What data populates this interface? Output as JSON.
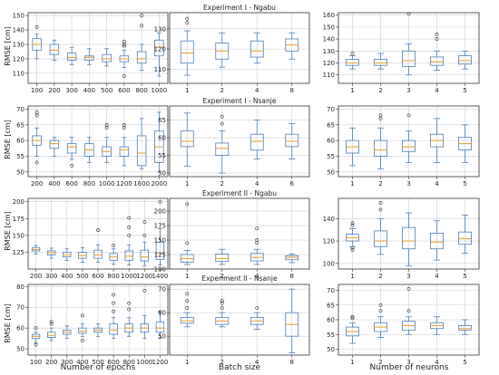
{
  "figure": {
    "row_titles": [
      "Experiment I - Ngabu",
      "Experiment I - Nsanje",
      "Experiment II - Ngabu",
      "Experiment II - Nsanje"
    ],
    "ylabel": "RMSE [cm]",
    "col_xlabels": [
      "Number of epochs",
      "Batch size",
      "Number of neurons"
    ]
  },
  "style": {
    "box_color": "#4a7fb5",
    "median_color": "#e8a33c",
    "grid_color": "#d0d0d0",
    "flier_color": "#333333"
  },
  "chart_data": [
    {
      "type": "box",
      "row": 0,
      "col": 0,
      "ylabel": "RMSE [cm]",
      "xlabel": "",
      "ylim": [
        103,
        152
      ],
      "yticks": [
        110,
        120,
        130,
        140,
        150
      ],
      "categories": [
        "100",
        "200",
        "300",
        "400",
        "500",
        "600",
        "800",
        "1000"
      ],
      "boxes": [
        {
          "lo": 120,
          "q1": 126,
          "med": 130,
          "q3": 134,
          "hi": 137,
          "fliers": [
            142
          ]
        },
        {
          "lo": 119,
          "q1": 123,
          "med": 126,
          "q3": 130,
          "hi": 133,
          "fliers": []
        },
        {
          "lo": 116,
          "q1": 119,
          "med": 121,
          "q3": 124,
          "hi": 128,
          "fliers": []
        },
        {
          "lo": 116,
          "q1": 119,
          "med": 121,
          "q3": 122,
          "hi": 127,
          "fliers": []
        },
        {
          "lo": 115,
          "q1": 118,
          "med": 120,
          "q3": 123,
          "hi": 127,
          "fliers": []
        },
        {
          "lo": 114,
          "q1": 118,
          "med": 120,
          "q3": 122,
          "hi": 126,
          "fliers": [
            108,
            129,
            130,
            132
          ]
        },
        {
          "lo": 112,
          "q1": 117,
          "med": 120,
          "q3": 125,
          "hi": 130,
          "fliers": [
            143,
            150
          ]
        },
        {
          "lo": 108,
          "q1": 122,
          "med": 128,
          "q3": 133,
          "hi": 138,
          "fliers": []
        }
      ]
    },
    {
      "type": "box",
      "row": 0,
      "col": 1,
      "title": "Experiment I - Ngabu",
      "ylim": [
        103,
        138
      ],
      "yticks": [
        110,
        120,
        130
      ],
      "categories": [
        "1",
        "2",
        "4",
        "8"
      ],
      "boxes": [
        {
          "lo": 107,
          "q1": 113,
          "med": 118,
          "q3": 124,
          "hi": 129,
          "fliers": [
            133,
            135
          ]
        },
        {
          "lo": 111,
          "q1": 115,
          "med": 119,
          "q3": 123,
          "hi": 128,
          "fliers": []
        },
        {
          "lo": 113,
          "q1": 116,
          "med": 119,
          "q3": 124,
          "hi": 128,
          "fliers": []
        },
        {
          "lo": 115,
          "q1": 119,
          "med": 122,
          "q3": 125,
          "hi": 128,
          "fliers": []
        }
      ]
    },
    {
      "type": "box",
      "row": 0,
      "col": 2,
      "ylim": [
        103,
        162
      ],
      "yticks": [
        110,
        120,
        130,
        140,
        150,
        160
      ],
      "categories": [
        "1",
        "2",
        "3",
        "4",
        "5"
      ],
      "boxes": [
        {
          "lo": 115,
          "q1": 118,
          "med": 120,
          "q3": 123,
          "hi": 126,
          "fliers": [
            128
          ]
        },
        {
          "lo": 115,
          "q1": 118,
          "med": 120,
          "q3": 123,
          "hi": 128,
          "fliers": []
        },
        {
          "lo": 110,
          "q1": 117,
          "med": 122,
          "q3": 130,
          "hi": 136,
          "fliers": [
            161
          ]
        },
        {
          "lo": 114,
          "q1": 118,
          "med": 121,
          "q3": 125,
          "hi": 130,
          "fliers": [
            140,
            144
          ]
        },
        {
          "lo": 115,
          "q1": 119,
          "med": 122,
          "q3": 126,
          "hi": 130,
          "fliers": []
        }
      ]
    },
    {
      "type": "box",
      "row": 1,
      "col": 0,
      "ylabel": "RMSE [cm]",
      "ylim": [
        48.5,
        71
      ],
      "yticks": [
        50,
        55,
        60,
        65,
        70
      ],
      "categories": [
        "200",
        "400",
        "600",
        "800",
        "1000",
        "1200",
        "1600",
        "2000"
      ],
      "boxes": [
        {
          "lo": 55,
          "q1": 58.5,
          "med": 60,
          "q3": 61.5,
          "hi": 64,
          "fliers": [
            68,
            69,
            53
          ]
        },
        {
          "lo": 55,
          "q1": 57.5,
          "med": 59,
          "q3": 60,
          "hi": 61,
          "fliers": []
        },
        {
          "lo": 54,
          "q1": 56,
          "med": 58,
          "q3": 59,
          "hi": 61,
          "fliers": [
            52
          ]
        },
        {
          "lo": 53,
          "q1": 55,
          "med": 57,
          "q3": 59,
          "hi": 61,
          "fliers": []
        },
        {
          "lo": 53,
          "q1": 55,
          "med": 56.5,
          "q3": 58,
          "hi": 61,
          "fliers": [
            64,
            65
          ]
        },
        {
          "lo": 52,
          "q1": 55,
          "med": 57,
          "q3": 58,
          "hi": 61,
          "fliers": [
            64,
            65
          ]
        },
        {
          "lo": 51,
          "q1": 52,
          "med": 56,
          "q3": 61.5,
          "hi": 67,
          "fliers": []
        },
        {
          "lo": 50,
          "q1": 53,
          "med": 58,
          "q3": 63,
          "hi": 69,
          "fliers": []
        }
      ]
    },
    {
      "type": "box",
      "row": 1,
      "col": 1,
      "title": "Experiment I - Nsanje",
      "ylim": [
        49,
        69
      ],
      "yticks": [
        50,
        55,
        60,
        65
      ],
      "categories": [
        "1",
        "2",
        "4",
        "6"
      ],
      "boxes": [
        {
          "lo": 52,
          "q1": 57.5,
          "med": 59,
          "q3": 62,
          "hi": 67,
          "fliers": []
        },
        {
          "lo": 50,
          "q1": 55,
          "med": 57,
          "q3": 58.5,
          "hi": 62,
          "fliers": [
            64,
            66
          ]
        },
        {
          "lo": 54,
          "q1": 56.5,
          "med": 59,
          "q3": 61,
          "hi": 65,
          "fliers": []
        },
        {
          "lo": 54,
          "q1": 57.5,
          "med": 59,
          "q3": 61,
          "hi": 64,
          "fliers": []
        }
      ]
    },
    {
      "type": "box",
      "row": 1,
      "col": 2,
      "ylim": [
        48.5,
        71
      ],
      "yticks": [
        50,
        55,
        60,
        65,
        70
      ],
      "categories": [
        "1",
        "2",
        "3",
        "4",
        "5"
      ],
      "boxes": [
        {
          "lo": 52,
          "q1": 56,
          "med": 58,
          "q3": 60,
          "hi": 64,
          "fliers": []
        },
        {
          "lo": 51,
          "q1": 55,
          "med": 57,
          "q3": 60,
          "hi": 64,
          "fliers": [
            67,
            68
          ]
        },
        {
          "lo": 53,
          "q1": 56.5,
          "med": 58,
          "q3": 60,
          "hi": 63,
          "fliers": [
            68
          ]
        },
        {
          "lo": 53,
          "q1": 58,
          "med": 60,
          "q3": 62,
          "hi": 67,
          "fliers": []
        },
        {
          "lo": 53,
          "q1": 57,
          "med": 59,
          "q3": 61,
          "hi": 65,
          "fliers": []
        }
      ]
    },
    {
      "type": "box",
      "row": 2,
      "col": 0,
      "ylabel": "RMSE [cm]",
      "ylim": [
        100,
        205
      ],
      "yticks": [
        125,
        150,
        175,
        200
      ],
      "categories": [
        "200",
        "300",
        "400",
        "500",
        "600",
        "800",
        "1000",
        "1200",
        "1400"
      ],
      "boxes": [
        {
          "lo": 122,
          "q1": 127,
          "med": 129,
          "q3": 132,
          "hi": 135,
          "fliers": []
        },
        {
          "lo": 116,
          "q1": 121,
          "med": 124,
          "q3": 127,
          "hi": 131,
          "fliers": []
        },
        {
          "lo": 113,
          "q1": 118,
          "med": 121,
          "q3": 125,
          "hi": 130,
          "fliers": []
        },
        {
          "lo": 110,
          "q1": 116,
          "med": 120,
          "q3": 125,
          "hi": 132,
          "fliers": []
        },
        {
          "lo": 110,
          "q1": 116,
          "med": 121,
          "q3": 128,
          "hi": 136,
          "fliers": [
            158
          ]
        },
        {
          "lo": 107,
          "q1": 113,
          "med": 118,
          "q3": 123,
          "hi": 130,
          "fliers": [
            135
          ]
        },
        {
          "lo": 106,
          "q1": 113,
          "med": 119,
          "q3": 127,
          "hi": 136,
          "fliers": [
            150,
            162,
            176
          ]
        },
        {
          "lo": 105,
          "q1": 112,
          "med": 118,
          "q3": 128,
          "hi": 140,
          "fliers": [
            150,
            170
          ]
        },
        {
          "lo": 106,
          "q1": 114,
          "med": 123,
          "q3": 140,
          "hi": 160,
          "fliers": [
            200
          ]
        }
      ]
    },
    {
      "type": "box",
      "row": 2,
      "col": 1,
      "title": "Experiment II - Ngabu",
      "ylim": [
        100,
        222
      ],
      "yticks": [
        100,
        125,
        150,
        175,
        200
      ],
      "categories": [
        "1",
        "2",
        "4",
        "8"
      ],
      "boxes": [
        {
          "lo": 108,
          "q1": 112,
          "med": 118,
          "q3": 125,
          "hi": 132,
          "fliers": [
            145,
            212
          ]
        },
        {
          "lo": 108,
          "q1": 113,
          "med": 118,
          "q3": 126,
          "hi": 134,
          "fliers": []
        },
        {
          "lo": 108,
          "q1": 114,
          "med": 120,
          "q3": 127,
          "hi": 134,
          "fliers": [
            145,
            150,
            170
          ]
        },
        {
          "lo": 111,
          "q1": 116,
          "med": 120,
          "q3": 123,
          "hi": 126,
          "fliers": []
        }
      ]
    },
    {
      "type": "box",
      "row": 2,
      "col": 2,
      "ylim": [
        95,
        158
      ],
      "yticks": [
        100,
        120,
        140
      ],
      "categories": [
        "1",
        "2",
        "3",
        "4",
        "5"
      ],
      "boxes": [
        {
          "lo": 115,
          "q1": 120,
          "med": 123,
          "q3": 126,
          "hi": 131,
          "fliers": [
            112,
            114,
            134,
            136
          ]
        },
        {
          "lo": 108,
          "q1": 115,
          "med": 120,
          "q3": 129,
          "hi": 140,
          "fliers": [
            148,
            154
          ]
        },
        {
          "lo": 98,
          "q1": 113,
          "med": 120,
          "q3": 132,
          "hi": 145,
          "fliers": []
        },
        {
          "lo": 103,
          "q1": 113,
          "med": 119,
          "q3": 127,
          "hi": 138,
          "fliers": []
        },
        {
          "lo": 109,
          "q1": 117,
          "med": 122,
          "q3": 128,
          "hi": 143,
          "fliers": []
        }
      ]
    },
    {
      "type": "box",
      "row": 3,
      "col": 0,
      "ylabel": "RMSE [cm]",
      "ylim": [
        47,
        81
      ],
      "yticks": [
        50,
        60,
        70,
        80
      ],
      "categories": [
        "100",
        "200",
        "300",
        "400",
        "500",
        "600",
        "800",
        "1000",
        "1200"
      ],
      "boxes": [
        {
          "lo": 53,
          "q1": 55,
          "med": 56,
          "q3": 57,
          "hi": 58,
          "fliers": [
            52,
            60
          ]
        },
        {
          "lo": 54,
          "q1": 55.5,
          "med": 56.5,
          "q3": 58,
          "hi": 60,
          "fliers": [
            62,
            63
          ]
        },
        {
          "lo": 55,
          "q1": 57,
          "med": 58,
          "q3": 59,
          "hi": 61,
          "fliers": []
        },
        {
          "lo": 56,
          "q1": 57.5,
          "med": 58.5,
          "q3": 60,
          "hi": 62,
          "fliers": [
            54,
            66
          ]
        },
        {
          "lo": 56,
          "q1": 58,
          "med": 59,
          "q3": 60,
          "hi": 62,
          "fliers": []
        },
        {
          "lo": 55,
          "q1": 57,
          "med": 59,
          "q3": 62,
          "hi": 65,
          "fliers": [
            68,
            72,
            76
          ]
        },
        {
          "lo": 56,
          "q1": 58,
          "med": 60,
          "q3": 62,
          "hi": 65,
          "fliers": [
            69,
            72
          ]
        },
        {
          "lo": 55,
          "q1": 58,
          "med": 60,
          "q3": 62,
          "hi": 66,
          "fliers": [
            78
          ]
        },
        {
          "lo": 55,
          "q1": 58,
          "med": 60,
          "q3": 63,
          "hi": 68,
          "fliers": []
        }
      ]
    },
    {
      "type": "box",
      "row": 3,
      "col": 1,
      "title": "Experiment II - Nsanje",
      "xlabel": "Batch size",
      "ylim": [
        42,
        72
      ],
      "yticks": [
        50,
        60,
        70
      ],
      "categories": [
        "1",
        "2",
        "4",
        "8"
      ],
      "boxes": [
        {
          "lo": 54,
          "q1": 55.5,
          "med": 56.5,
          "q3": 58,
          "hi": 60,
          "fliers": [
            62,
            65,
            68
          ]
        },
        {
          "lo": 54,
          "q1": 55,
          "med": 56.5,
          "q3": 58,
          "hi": 60,
          "fliers": [
            62,
            64,
            65
          ]
        },
        {
          "lo": 53,
          "q1": 55,
          "med": 56.5,
          "q3": 58,
          "hi": 60,
          "fliers": [
            62
          ]
        },
        {
          "lo": 43,
          "q1": 50,
          "med": 55,
          "q3": 60,
          "hi": 70,
          "fliers": []
        }
      ]
    },
    {
      "type": "box",
      "row": 3,
      "col": 2,
      "xlabel": "Number of neurons",
      "ylim": [
        48,
        72
      ],
      "yticks": [
        50,
        55,
        60,
        65,
        70
      ],
      "categories": [
        "1",
        "2",
        "3",
        "4",
        "5"
      ],
      "boxes": [
        {
          "lo": 52,
          "q1": 54.5,
          "med": 56,
          "q3": 57.5,
          "hi": 59,
          "fliers": [
            60.5,
            61
          ]
        },
        {
          "lo": 54,
          "q1": 56,
          "med": 57.5,
          "q3": 59,
          "hi": 61,
          "fliers": [
            63,
            65
          ]
        },
        {
          "lo": 55,
          "q1": 56.5,
          "med": 58,
          "q3": 59.5,
          "hi": 61,
          "fliers": [
            63,
            70.5
          ]
        },
        {
          "lo": 55,
          "q1": 57,
          "med": 58,
          "q3": 59,
          "hi": 61,
          "fliers": []
        },
        {
          "lo": 55,
          "q1": 56.5,
          "med": 57,
          "q3": 58,
          "hi": 60,
          "fliers": []
        }
      ]
    }
  ]
}
